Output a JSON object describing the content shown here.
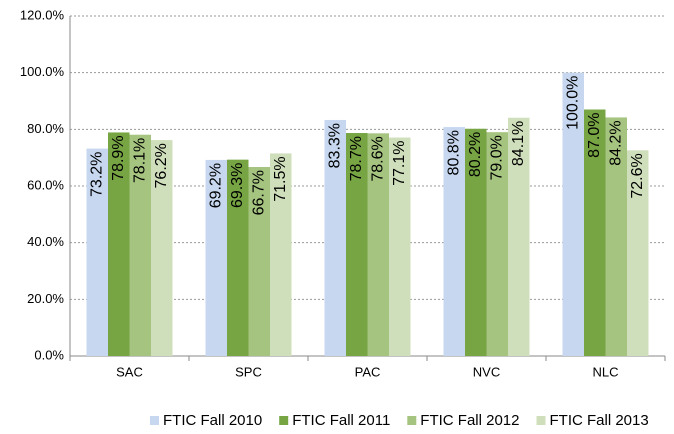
{
  "chart_data": {
    "type": "bar",
    "categories": [
      "SAC",
      "SPC",
      "PAC",
      "NVC",
      "NLC"
    ],
    "series": [
      {
        "name": "FTIC Fall 2010",
        "color": "#c6d7ef",
        "values": [
          73.2,
          69.2,
          83.3,
          80.8,
          100.0
        ],
        "value_labels": [
          "73.2%",
          "69.2%",
          "83.3%",
          "80.8%",
          "100.0%"
        ]
      },
      {
        "name": "FTIC Fall 2011",
        "color": "#77a543",
        "values": [
          78.9,
          69.3,
          78.7,
          80.2,
          87.0
        ],
        "value_labels": [
          "78.9%",
          "69.3%",
          "78.7%",
          "80.2%",
          "87.0%"
        ]
      },
      {
        "name": "FTIC Fall 2012",
        "color": "#a5c47f",
        "values": [
          78.1,
          66.7,
          78.6,
          79.0,
          84.2
        ],
        "value_labels": [
          "78.1%",
          "66.7%",
          "78.6%",
          "79.0%",
          "84.2%"
        ]
      },
      {
        "name": "FTIC Fall 2013",
        "color": "#d0dfbb",
        "values": [
          76.2,
          71.5,
          77.1,
          84.1,
          72.6
        ],
        "value_labels": [
          "76.2%",
          "71.5%",
          "77.1%",
          "84.1%",
          "72.6%"
        ]
      }
    ],
    "ylim": [
      0,
      120
    ],
    "yticks": [
      {
        "value": 0,
        "label": "0.0%"
      },
      {
        "value": 20,
        "label": "20.0%"
      },
      {
        "value": 40,
        "label": "40.0%"
      },
      {
        "value": 60,
        "label": "60.0%"
      },
      {
        "value": 80,
        "label": "80.0%"
      },
      {
        "value": 100,
        "label": "100.0%"
      },
      {
        "value": 120,
        "label": "120.0%"
      }
    ],
    "grid": true,
    "legend": "bottom"
  }
}
